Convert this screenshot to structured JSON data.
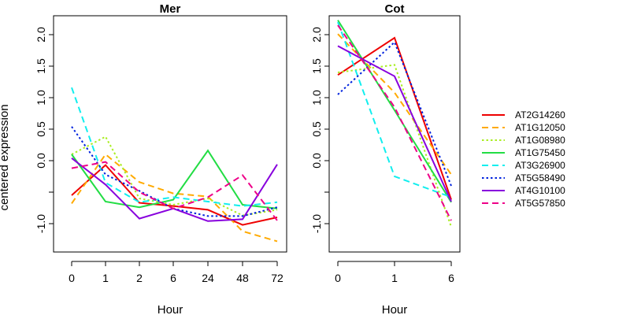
{
  "chart_data": {
    "type": "line",
    "ylabel": "centered expression",
    "ylim": [
      -1.45,
      2.3
    ],
    "y_ticks": [
      -1.0,
      -0.5,
      0.0,
      0.5,
      1.0,
      1.5,
      2.0
    ],
    "y_tick_labels": [
      "-1.0",
      "",
      "0.0",
      "0.5",
      "1.0",
      "1.5",
      "2.0"
    ],
    "legend_position": "right",
    "series": [
      {
        "name": "AT2G14260",
        "color": "#ee0000",
        "dash": "solid"
      },
      {
        "name": "AT1G12050",
        "color": "#ffaa00",
        "dash": "dashed"
      },
      {
        "name": "AT1G08980",
        "color": "#aaee22",
        "dash": "dotted"
      },
      {
        "name": "AT1G75450",
        "color": "#22dd44",
        "dash": "solid"
      },
      {
        "name": "AT3G26900",
        "color": "#11eeee",
        "dash": "dashed"
      },
      {
        "name": "AT5G58490",
        "color": "#0022dd",
        "dash": "dotted"
      },
      {
        "name": "AT4G10100",
        "color": "#8800dd",
        "dash": "solid"
      },
      {
        "name": "AT5G57850",
        "color": "#ee0088",
        "dash": "dashed"
      }
    ],
    "panels": [
      {
        "title": "Mer",
        "xlabel": "Hour",
        "categories": [
          "0",
          "1",
          "2",
          "6",
          "24",
          "48",
          "72"
        ],
        "values": [
          [
            -0.55,
            -0.07,
            -0.67,
            -0.72,
            -0.78,
            -1.02,
            -0.9
          ],
          [
            -0.68,
            0.1,
            -0.34,
            -0.52,
            -0.57,
            -1.12,
            -1.28
          ],
          [
            0.1,
            0.38,
            -0.6,
            -0.7,
            -0.6,
            -0.87,
            -0.78
          ],
          [
            0.1,
            -0.65,
            -0.74,
            -0.62,
            0.16,
            -0.7,
            -0.76
          ],
          [
            1.16,
            -0.35,
            -0.66,
            -0.58,
            -0.65,
            -0.72,
            -0.66
          ],
          [
            0.54,
            -0.22,
            -0.48,
            -0.76,
            -0.88,
            -0.88,
            -0.74
          ],
          [
            0.04,
            -0.38,
            -0.92,
            -0.76,
            -0.96,
            -0.93,
            -0.06
          ],
          [
            -0.12,
            -0.02,
            -0.5,
            -0.76,
            -0.58,
            -0.23,
            -0.95
          ]
        ]
      },
      {
        "title": "Cot",
        "xlabel": "Hour",
        "categories": [
          "0",
          "1",
          "6"
        ],
        "values": [
          [
            1.36,
            1.95,
            -0.62
          ],
          [
            2.01,
            1.08,
            -0.22
          ],
          [
            1.4,
            1.52,
            -1.05
          ],
          [
            2.23,
            0.8,
            -0.66
          ],
          [
            2.2,
            -0.25,
            -0.58
          ],
          [
            1.05,
            1.88,
            -0.4
          ],
          [
            1.82,
            1.34,
            -0.65
          ],
          [
            2.15,
            0.85,
            -0.95
          ]
        ]
      }
    ]
  }
}
